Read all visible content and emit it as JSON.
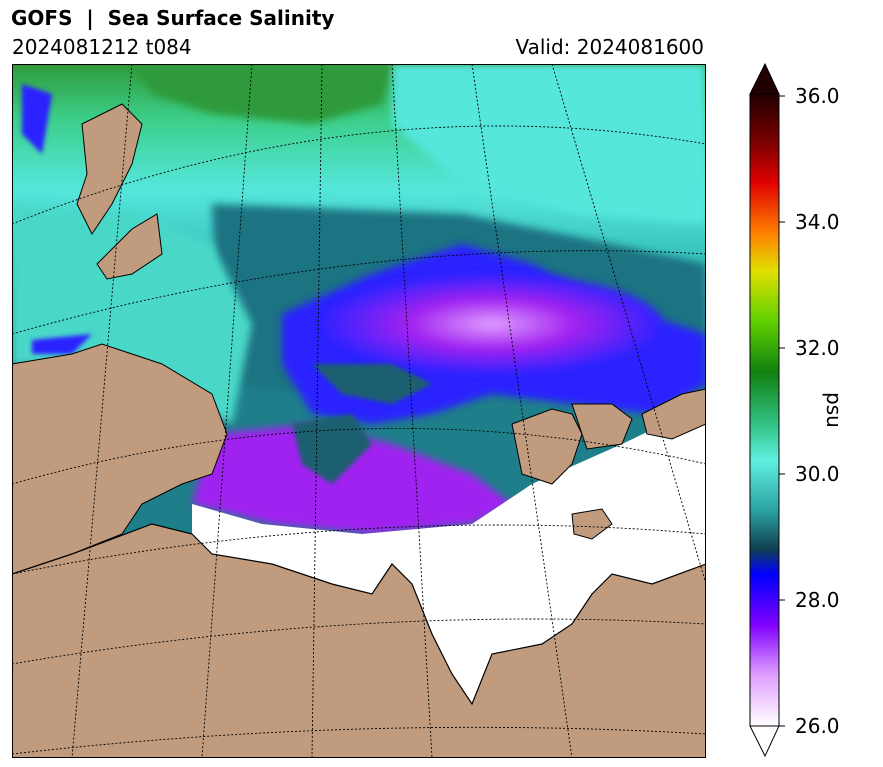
{
  "header": {
    "title": "GOFS  |  Sea Surface Salinity",
    "run": "2024081212 t084",
    "valid": "Valid: 2024081600"
  },
  "colorbar": {
    "label": "psu",
    "ticks": [
      "36.0",
      "34.0",
      "32.0",
      "30.0",
      "28.0",
      "26.0"
    ],
    "range": [
      26.0,
      36.0
    ],
    "extend": "both"
  },
  "colors": {
    "land": "#c09b7e",
    "ice_ocean_fresh": "#ffffff",
    "fresh_purple": "#a020f0",
    "blue": "#2020ff",
    "teal": "#1a6f80",
    "cyan": "#50e8e0",
    "green": "#2a9a30"
  }
}
